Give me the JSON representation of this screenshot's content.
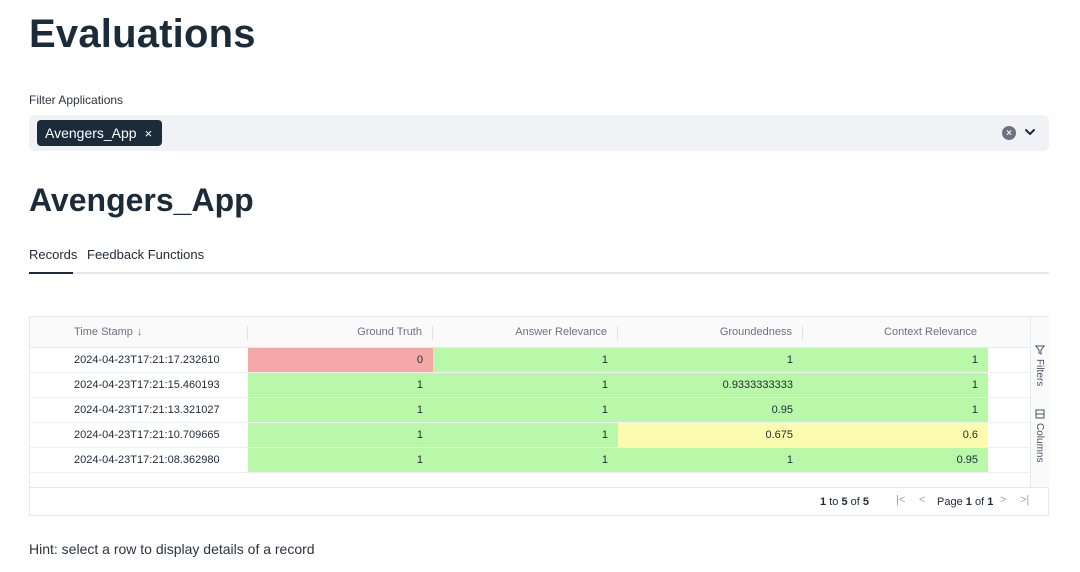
{
  "page": {
    "title": "Evaluations"
  },
  "filter": {
    "label": "Filter Applications",
    "selected_chip": "Avengers_App",
    "chip_remove": "×",
    "clear_glyph": "×"
  },
  "app": {
    "title": "Avengers_App"
  },
  "tabs": [
    {
      "label": "Records",
      "active": true
    },
    {
      "label": "Feedback Functions",
      "active": false
    }
  ],
  "table": {
    "columns": [
      "Time Stamp",
      "Ground Truth",
      "Answer Relevance",
      "Groundedness",
      "Context Relevance"
    ],
    "sort_glyph": "↓",
    "rows": [
      [
        "2024-04-23T17:21:17.232610",
        "0",
        "1",
        "1",
        "1"
      ],
      [
        "2024-04-23T17:21:15.460193",
        "1",
        "1",
        "0.9333333333",
        "1"
      ],
      [
        "2024-04-23T17:21:13.321027",
        "1",
        "1",
        "0.95",
        "1"
      ],
      [
        "2024-04-23T17:21:10.709665",
        "1",
        "1",
        "0.675",
        "0.6"
      ],
      [
        "2024-04-23T17:21:08.362980",
        "1",
        "1",
        "1",
        "0.95"
      ]
    ],
    "cell_colors": [
      [
        "#f4a8a8",
        "#b8f8a8",
        "#b8f8a8",
        "#b8f8a8"
      ],
      [
        "#b8f8a8",
        "#b8f8a8",
        "#b8f8a8",
        "#b8f8a8"
      ],
      [
        "#b8f8a8",
        "#b8f8a8",
        "#b8f8a8",
        "#b8f8a8"
      ],
      [
        "#b8f8a8",
        "#b8f8a8",
        "#fdfcae",
        "#fdfcae"
      ],
      [
        "#b8f8a8",
        "#b8f8a8",
        "#b8f8a8",
        "#b8f8a8"
      ]
    ],
    "side_panel": {
      "filters": "Filters",
      "columns": "Columns"
    },
    "pagination": {
      "from": "1",
      "to_word": "to",
      "to": "5",
      "of_word": "of",
      "total": "5",
      "page_word": "Page",
      "page": "1",
      "page_of_word": "of",
      "pages": "1"
    }
  },
  "hint": "Hint: select a row to display details of a record"
}
